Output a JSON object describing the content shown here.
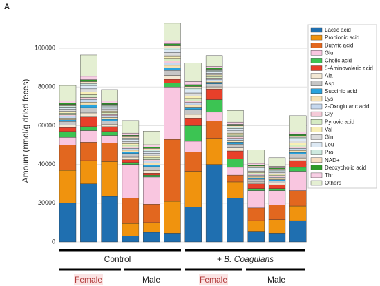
{
  "chart_data": {
    "type": "stacked_bar",
    "panel_label": "A",
    "ylabel": "Amount (nmol/g dried feces)",
    "ylim": [
      0,
      115000
    ],
    "yticks": [
      0,
      20000,
      40000,
      60000,
      80000,
      100000
    ],
    "grid": true,
    "legend": "right",
    "groups": [
      "Control",
      "+ B. Coagulans"
    ],
    "subgroups": [
      "Female",
      "Male",
      "Female",
      "Male"
    ],
    "series": [
      {
        "name": "Lactic acid",
        "color": "#1f6fb0",
        "values": [
          20000,
          30000,
          23500,
          3000,
          5000,
          4500,
          18000,
          40000,
          22500,
          5500,
          4500,
          11000
        ]
      },
      {
        "name": "Propionic acid",
        "color": "#f0930e",
        "values": [
          17000,
          12000,
          18000,
          6500,
          5000,
          16500,
          18500,
          13500,
          8500,
          5500,
          7000,
          7500
        ]
      },
      {
        "name": "Butyric acid",
        "color": "#e2671f",
        "values": [
          13000,
          9500,
          9500,
          13000,
          9500,
          32000,
          10000,
          9000,
          3500,
          6500,
          7500,
          8000
        ]
      },
      {
        "name": "Glu",
        "color": "#f9c6e0",
        "values": [
          4000,
          6000,
          4000,
          17500,
          14000,
          27000,
          5500,
          4500,
          4000,
          9000,
          7500,
          10000
        ]
      },
      {
        "name": "Cholic acid",
        "color": "#3cc453",
        "values": [
          3000,
          2000,
          2000,
          1000,
          1000,
          2000,
          8000,
          6500,
          4500,
          1000,
          1000,
          2000
        ]
      },
      {
        "name": "5-Aminovaleric acid",
        "color": "#e8402a",
        "values": [
          2000,
          5000,
          2500,
          1500,
          1000,
          2000,
          4000,
          5500,
          4000,
          2500,
          2000,
          3500
        ]
      },
      {
        "name": "Ala",
        "color": "#f3e8d4",
        "values": [
          1400,
          2100,
          1300,
          1300,
          1400,
          2000,
          1900,
          1100,
          1500,
          1000,
          900,
          1400
        ]
      },
      {
        "name": "Asp",
        "color": "#c6c6c6",
        "values": [
          1800,
          2800,
          1700,
          1800,
          1900,
          2600,
          2500,
          1500,
          2000,
          1400,
          1200,
          1900
        ]
      },
      {
        "name": "Succinic acid",
        "color": "#2aa3dd",
        "values": [
          900,
          1400,
          900,
          900,
          1000,
          1300,
          1200,
          800,
          1000,
          700,
          600,
          1000
        ]
      },
      {
        "name": "Lys",
        "color": "#f5e1b3",
        "values": [
          900,
          1400,
          900,
          900,
          1000,
          1300,
          1200,
          800,
          1000,
          700,
          600,
          1000
        ]
      },
      {
        "name": "2-Oxoglutaric acid",
        "color": "#c6d8ee",
        "values": [
          900,
          1400,
          900,
          900,
          1000,
          1300,
          1200,
          800,
          1000,
          700,
          600,
          1000
        ]
      },
      {
        "name": "Gly",
        "color": "#f5cbd8",
        "values": [
          700,
          1000,
          600,
          700,
          700,
          1000,
          900,
          600,
          700,
          500,
          500,
          700
        ]
      },
      {
        "name": "Pyruvic acid",
        "color": "#d6ebc3",
        "values": [
          900,
          1400,
          900,
          900,
          1000,
          1300,
          1200,
          800,
          1000,
          700,
          600,
          1000
        ]
      },
      {
        "name": "Val",
        "color": "#f8efb6",
        "values": [
          900,
          1400,
          900,
          900,
          1000,
          1300,
          1200,
          800,
          1000,
          700,
          600,
          1000
        ]
      },
      {
        "name": "Gln",
        "color": "#dcdcdc",
        "values": [
          1100,
          1700,
          1100,
          1100,
          1200,
          1600,
          1600,
          900,
          1200,
          900,
          800,
          1200
        ]
      },
      {
        "name": "Leu",
        "color": "#dde9f4",
        "values": [
          1100,
          1700,
          1100,
          1100,
          1200,
          1600,
          1600,
          900,
          1200,
          900,
          800,
          1200
        ]
      },
      {
        "name": "Pro",
        "color": "#cde9df",
        "values": [
          700,
          1000,
          600,
          700,
          700,
          1000,
          900,
          600,
          700,
          500,
          500,
          700
        ]
      },
      {
        "name": "NAD+",
        "color": "#f6dec2",
        "values": [
          700,
          1000,
          600,
          700,
          700,
          1000,
          900,
          600,
          700,
          500,
          500,
          700
        ]
      },
      {
        "name": "Deoxycholic acid",
        "color": "#2e9a2a",
        "values": [
          700,
          1000,
          600,
          700,
          700,
          1000,
          900,
          600,
          700,
          500,
          500,
          700
        ]
      },
      {
        "name": "Thr",
        "color": "#f8cfe5",
        "values": [
          1100,
          1700,
          1100,
          1100,
          1200,
          1600,
          1600,
          900,
          1200,
          900,
          800,
          1200
        ]
      },
      {
        "name": "Others",
        "color": "#e4efd2",
        "values": [
          8000,
          11000,
          6000,
          6500,
          7000,
          9000,
          9500,
          5500,
          6000,
          7000,
          4500,
          8500
        ]
      }
    ]
  }
}
